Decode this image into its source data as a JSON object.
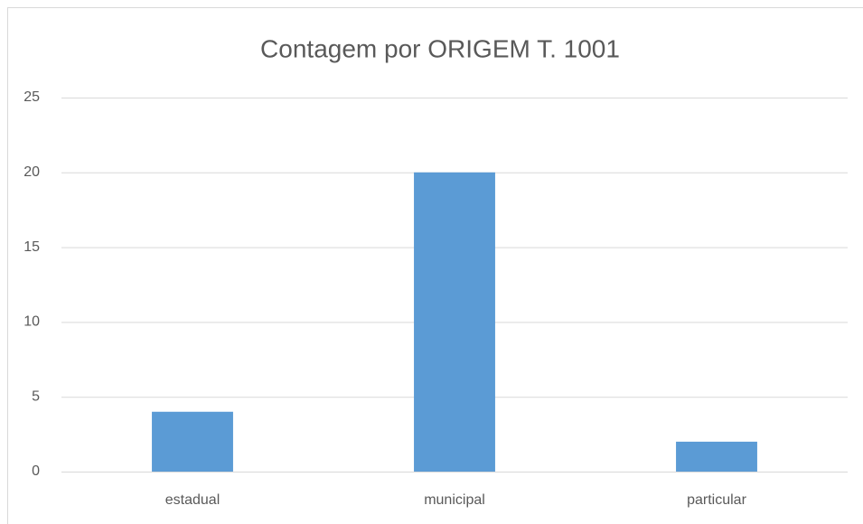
{
  "chart_data": {
    "type": "bar",
    "title": "Contagem por ORIGEM T. 1001",
    "categories": [
      "estadual",
      "municipal",
      "particular"
    ],
    "values": [
      4,
      20,
      2
    ],
    "color": "#5b9bd5",
    "ylim": [
      0,
      25
    ],
    "yticks": [
      0,
      5,
      10,
      15,
      20,
      25
    ],
    "grid": true
  }
}
